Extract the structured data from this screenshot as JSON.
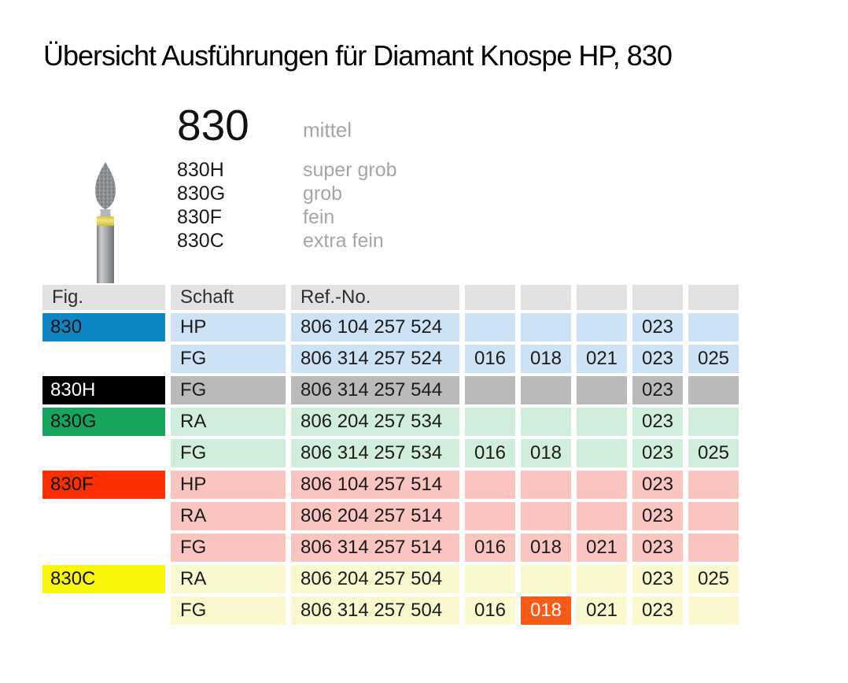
{
  "page": {
    "title": "Übersicht Ausführungen für Diamant Knospe HP, 830"
  },
  "product": {
    "code": "830",
    "grit": "mittel",
    "photo": "diamond-bud-bur",
    "variants": [
      {
        "code": "830H",
        "grit": "super grob"
      },
      {
        "code": "830G",
        "grit": "grob"
      },
      {
        "code": "830F",
        "grit": "fein"
      },
      {
        "code": "830C",
        "grit": "extra fein"
      }
    ]
  },
  "table": {
    "headers": [
      "Fig.",
      "Schaft",
      "Ref.-No.",
      "",
      "",
      "",
      "",
      ""
    ],
    "rows": [
      {
        "fig": "830",
        "fig_bg": "#0d86c4",
        "fig_color": "#111111",
        "row_bg": "#cde2f4",
        "schaft": "HP",
        "ref": "806 104 257 524",
        "sizes": [
          "",
          "",
          "",
          "023",
          ""
        ]
      },
      {
        "fig": "",
        "fig_bg": "",
        "fig_color": "",
        "row_bg": "#cde2f4",
        "schaft": "FG",
        "ref": "806 314 257 524",
        "sizes": [
          "016",
          "018",
          "021",
          "023",
          "025"
        ]
      },
      {
        "fig": "830H",
        "fig_bg": "#000000",
        "fig_color": "#ffffff",
        "row_bg": "#bababa",
        "schaft": "FG",
        "ref": "806 314 257 544",
        "sizes": [
          "",
          "",
          "",
          "023",
          ""
        ]
      },
      {
        "fig": "830G",
        "fig_bg": "#17a45c",
        "fig_color": "#111111",
        "row_bg": "#d0eedb",
        "schaft": "RA",
        "ref": "806 204 257 534",
        "sizes": [
          "",
          "",
          "",
          "023",
          ""
        ]
      },
      {
        "fig": "",
        "fig_bg": "",
        "fig_color": "",
        "row_bg": "#d0eedb",
        "schaft": "FG",
        "ref": "806 314 257 534",
        "sizes": [
          "016",
          "018",
          "",
          "023",
          "025"
        ]
      },
      {
        "fig": "830F",
        "fig_bg": "#fd2f00",
        "fig_color": "#111111",
        "row_bg": "#fac5c1",
        "schaft": "HP",
        "ref": "806 104 257 514",
        "sizes": [
          "",
          "",
          "",
          "023",
          ""
        ]
      },
      {
        "fig": "",
        "fig_bg": "",
        "fig_color": "",
        "row_bg": "#fac5c1",
        "schaft": "RA",
        "ref": "806 204 257 514",
        "sizes": [
          "",
          "",
          "",
          "023",
          ""
        ]
      },
      {
        "fig": "",
        "fig_bg": "",
        "fig_color": "",
        "row_bg": "#fac5c1",
        "schaft": "FG",
        "ref": "806 314 257 514",
        "sizes": [
          "016",
          "018",
          "021",
          "023",
          ""
        ]
      },
      {
        "fig": "830C",
        "fig_bg": "#f9f607",
        "fig_color": "#111111",
        "row_bg": "#fbf8cf",
        "schaft": "RA",
        "ref": "806 204 257 504",
        "sizes": [
          "",
          "",
          "",
          "023",
          "025"
        ]
      },
      {
        "fig": "",
        "fig_bg": "",
        "fig_color": "",
        "row_bg": "#fbf8cf",
        "schaft": "FG",
        "ref": "806 314 257 504",
        "sizes": [
          "016",
          "018",
          "021",
          "023",
          ""
        ],
        "highlight_index": 1,
        "highlight_bg": "#f85a17",
        "highlight_color": "#ffffff"
      }
    ]
  },
  "colors": {
    "header_bg": "#e2e2e2",
    "text": "#1c1c1c",
    "muted": "#a5a5a5",
    "band_yellow": "#e8d95e"
  }
}
